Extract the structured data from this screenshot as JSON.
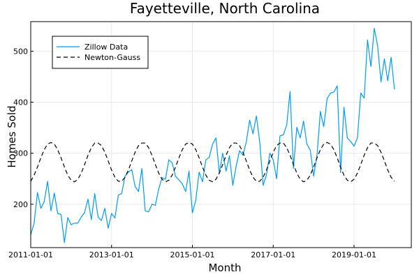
{
  "chart_data": {
    "type": "line",
    "title": "Fayetteville, North Carolina",
    "xlabel": "Month",
    "ylabel": "Homes Sold",
    "xlim": [
      "2011-01-01",
      "2020-06-01"
    ],
    "ylim": [
      115,
      558
    ],
    "x_ticks": [
      "2011-01-01",
      "2013-01-01",
      "2015-01-01",
      "2017-01-01",
      "2019-01-01"
    ],
    "y_ticks": [
      200,
      300,
      400,
      500
    ],
    "grid": true,
    "legend_position": "top-left",
    "series": [
      {
        "name": "Zillow Data",
        "color": "#009AFA",
        "dash": "solid",
        "start": "2011-01",
        "values": [
          140,
          163,
          223,
          192,
          205,
          245,
          187,
          222,
          182,
          180,
          125,
          174,
          160,
          163,
          163,
          175,
          184,
          210,
          170,
          221,
          175,
          168,
          192,
          153,
          182,
          173,
          218,
          221,
          255,
          263,
          268,
          235,
          225,
          270,
          187,
          185,
          200,
          198,
          230,
          252,
          249,
          287,
          281,
          255,
          248,
          240,
          225,
          265,
          183,
          208,
          263,
          244,
          287,
          292,
          318,
          330,
          261,
          300,
          265,
          295,
          237,
          275,
          305,
          296,
          322,
          365,
          338,
          373,
          322,
          237,
          258,
          300,
          287,
          250,
          334,
          336,
          355,
          421,
          270,
          351,
          330,
          363,
          318,
          306,
          255,
          296,
          382,
          352,
          407,
          418,
          420,
          432,
          262,
          390,
          330,
          323,
          314,
          330,
          418,
          408,
          522,
          470,
          545,
          510,
          440,
          485,
          442,
          488,
          425
        ]
      },
      {
        "name": "Newton-Gauss",
        "color": "#000000",
        "dash": "dashed",
        "start": "2011-01",
        "values": [
          245,
          257,
          273,
          291,
          307,
          318,
          321,
          318,
          307,
          291,
          273,
          257,
          247,
          244,
          249,
          261,
          278,
          296,
          311,
          320,
          320,
          315,
          302,
          285,
          267,
          253,
          245,
          245,
          253,
          267,
          285,
          302,
          315,
          320,
          320,
          311,
          296,
          278,
          261,
          249,
          244,
          247,
          257,
          273,
          291,
          307,
          318,
          321,
          318,
          307,
          291,
          273,
          257,
          247,
          244,
          249,
          261,
          278,
          296,
          311,
          320,
          320,
          315,
          302,
          285,
          267,
          253,
          245,
          245,
          253,
          267,
          285,
          302,
          315,
          320,
          320,
          311,
          296,
          278,
          261,
          249,
          244,
          247,
          257,
          273,
          291,
          307,
          318,
          321,
          318,
          307,
          291,
          273,
          257,
          247,
          244,
          249,
          261,
          278,
          296,
          311,
          320,
          320,
          315,
          302,
          285,
          267,
          253,
          245
        ]
      }
    ]
  }
}
